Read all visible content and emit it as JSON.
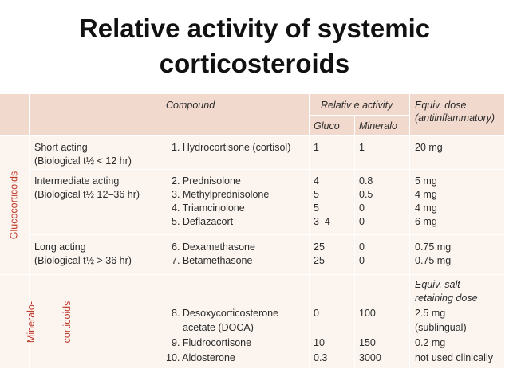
{
  "title": [
    "Relative activity of systemic",
    "corticosteroids"
  ],
  "header": {
    "compound": "Compound",
    "relative_activity": "Relativ e activity",
    "gluco": "Gluco",
    "mineralo": "Mineralo",
    "equiv_dose_1": "Equiv. dose",
    "equiv_dose_2": "(antiinflammatory)"
  },
  "groups": {
    "glucocorticoids": "Glucocorticoids",
    "mineralocorticoids_1": "Mineralo-",
    "mineralocorticoids_2": "corticoids"
  },
  "sections": [
    {
      "category": [
        "Short acting",
        "(Biological t½ < 12 hr)"
      ],
      "compounds": [
        "1. Hydrocortisone (cortisol)"
      ],
      "gluco": [
        "1"
      ],
      "mineralo": [
        "1"
      ],
      "dose": [
        "20 mg"
      ]
    },
    {
      "category": [
        "Intermediate acting",
        "(Biological t½ 12–36 hr)"
      ],
      "compounds": [
        "2. Prednisolone",
        "3. Methylprednisolone",
        "4. Triamcinolone",
        "5. Deflazacort"
      ],
      "gluco": [
        "4",
        "5",
        "5",
        "3–4"
      ],
      "mineralo": [
        "0.8",
        "0.5",
        "0",
        "0"
      ],
      "dose": [
        "5 mg",
        "4 mg",
        "4 mg",
        "6 mg"
      ]
    },
    {
      "category": [
        "Long acting",
        "(Biological t½ > 36 hr)"
      ],
      "compounds": [
        "6. Dexamethasone",
        "7. Betamethasone"
      ],
      "gluco": [
        "25",
        "25"
      ],
      "mineralo": [
        "0",
        "0"
      ],
      "dose": [
        "0.75 mg",
        "0.75 mg"
      ]
    }
  ],
  "mineralo_section": {
    "dose_header": [
      "Equiv. salt",
      "retaining dose"
    ],
    "compounds": [
      "8. Desoxycorticosterone",
      "acetate (DOCA)",
      "9. Fludrocortisone",
      "10. Aldosterone"
    ],
    "gluco": [
      "0",
      "",
      "10",
      "0.3"
    ],
    "mineralo": [
      "100",
      "",
      "150",
      "3000"
    ],
    "dose": [
      "2.5 mg",
      "(sublingual)",
      "0.2 mg",
      "not used clinically"
    ]
  }
}
